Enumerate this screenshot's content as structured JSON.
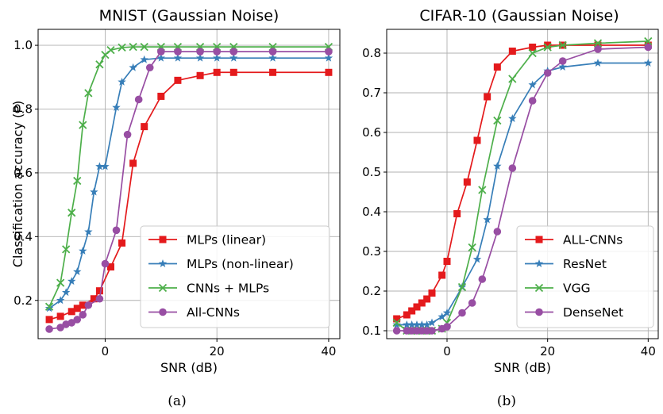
{
  "chart_data": [
    {
      "type": "line",
      "title": "MNIST (Gaussian Noise)",
      "xlabel": "SNR (dB)",
      "ylabel": "Classification accuracy (P)",
      "caption": "(a)",
      "xlim": [
        -12,
        42
      ],
      "ylim": [
        0.08,
        1.05
      ],
      "xticks": [
        0,
        20,
        40
      ],
      "yticks": [
        0.2,
        0.4,
        0.6,
        0.8,
        1.0
      ],
      "yticklabels": [
        "0.2",
        "0.4",
        "0.6",
        "0.8",
        "1.0"
      ],
      "grid": true,
      "legend_position": "lower-right",
      "series": [
        {
          "name": "MLPs (linear)",
          "color": "#e41a1c",
          "marker": "square",
          "x": [
            -10,
            -8,
            -6,
            -5,
            -4,
            -2,
            -1,
            1,
            3,
            5,
            7,
            10,
            13,
            17,
            20,
            23,
            30,
            40
          ],
          "y": [
            0.14,
            0.15,
            0.165,
            0.175,
            0.185,
            0.205,
            0.23,
            0.305,
            0.38,
            0.63,
            0.745,
            0.84,
            0.89,
            0.905,
            0.915,
            0.915,
            0.915,
            0.915
          ]
        },
        {
          "name": "MLPs (non-linear)",
          "color": "#377eb8",
          "marker": "star",
          "x": [
            -10,
            -8,
            -7,
            -6,
            -5,
            -4,
            -3,
            -2,
            -1,
            0,
            2,
            3,
            5,
            7,
            10,
            13,
            17,
            20,
            23,
            30,
            40
          ],
          "y": [
            0.175,
            0.2,
            0.225,
            0.26,
            0.29,
            0.355,
            0.415,
            0.54,
            0.62,
            0.62,
            0.805,
            0.885,
            0.93,
            0.955,
            0.96,
            0.96,
            0.96,
            0.96,
            0.96,
            0.96,
            0.96
          ]
        },
        {
          "name": "CNNs + MLPs",
          "color": "#4daf4a",
          "marker": "x",
          "x": [
            -10,
            -8,
            -7,
            -6,
            -5,
            -4,
            -3,
            -1,
            0,
            1,
            3,
            5,
            7,
            10,
            13,
            17,
            20,
            23,
            30,
            40
          ],
          "y": [
            0.18,
            0.255,
            0.36,
            0.475,
            0.575,
            0.75,
            0.85,
            0.94,
            0.97,
            0.985,
            0.993,
            0.995,
            0.995,
            0.995,
            0.995,
            0.995,
            0.995,
            0.995,
            0.995,
            0.995
          ]
        },
        {
          "name": "All-CNNs",
          "color": "#984ea3",
          "marker": "circle",
          "x": [
            -10,
            -8,
            -7,
            -6,
            -5,
            -4,
            -3,
            -1,
            0,
            2,
            4,
            6,
            8,
            10,
            13,
            17,
            20,
            23,
            30,
            40
          ],
          "y": [
            0.11,
            0.115,
            0.125,
            0.13,
            0.14,
            0.155,
            0.185,
            0.205,
            0.315,
            0.42,
            0.72,
            0.83,
            0.93,
            0.98,
            0.98,
            0.98,
            0.98,
            0.98,
            0.98,
            0.98
          ]
        }
      ]
    },
    {
      "type": "line",
      "title": "CIFAR-10 (Gaussian Noise)",
      "xlabel": "SNR (dB)",
      "ylabel": "",
      "caption": "(b)",
      "xlim": [
        -12,
        42
      ],
      "ylim": [
        0.08,
        0.86
      ],
      "xticks": [
        0,
        20,
        40
      ],
      "yticks": [
        0.1,
        0.2,
        0.3,
        0.4,
        0.5,
        0.6,
        0.7,
        0.8
      ],
      "yticklabels": [
        "0.1",
        "0.2",
        "0.3",
        "0.4",
        "0.5",
        "0.6",
        "0.7",
        "0.8"
      ],
      "grid": true,
      "legend_position": "lower-right",
      "series": [
        {
          "name": "ALL-CNNs",
          "color": "#e41a1c",
          "marker": "square",
          "x": [
            -10,
            -8,
            -7,
            -6,
            -5,
            -4,
            -3,
            -1,
            0,
            2,
            4,
            6,
            8,
            10,
            13,
            17,
            20,
            23,
            30,
            40
          ],
          "y": [
            0.13,
            0.14,
            0.15,
            0.16,
            0.17,
            0.18,
            0.195,
            0.24,
            0.275,
            0.395,
            0.475,
            0.58,
            0.69,
            0.765,
            0.805,
            0.815,
            0.82,
            0.82,
            0.82,
            0.82
          ]
        },
        {
          "name": "ResNet",
          "color": "#377eb8",
          "marker": "star",
          "x": [
            -10,
            -8,
            -7,
            -6,
            -5,
            -4,
            -3,
            -1,
            0,
            3,
            6,
            8,
            10,
            13,
            17,
            20,
            23,
            30,
            40
          ],
          "y": [
            0.115,
            0.115,
            0.115,
            0.115,
            0.115,
            0.115,
            0.12,
            0.135,
            0.145,
            0.21,
            0.28,
            0.38,
            0.515,
            0.635,
            0.72,
            0.755,
            0.765,
            0.775,
            0.775
          ]
        },
        {
          "name": "VGG",
          "color": "#4daf4a",
          "marker": "x",
          "x": [
            -10,
            -8,
            -7,
            -6,
            -5,
            -4,
            -3,
            -1,
            0,
            3,
            5,
            7,
            10,
            13,
            17,
            20,
            23,
            30,
            40
          ],
          "y": [
            0.12,
            0.1,
            0.1,
            0.1,
            0.1,
            0.1,
            0.1,
            0.105,
            0.12,
            0.21,
            0.31,
            0.455,
            0.63,
            0.735,
            0.8,
            0.815,
            0.82,
            0.825,
            0.83
          ]
        },
        {
          "name": "DenseNet",
          "color": "#984ea3",
          "marker": "circle",
          "x": [
            -10,
            -8,
            -7,
            -6,
            -5,
            -4,
            -3,
            -1,
            0,
            3,
            5,
            7,
            10,
            13,
            17,
            20,
            23,
            30,
            40
          ],
          "y": [
            0.1,
            0.1,
            0.1,
            0.1,
            0.1,
            0.1,
            0.1,
            0.105,
            0.11,
            0.145,
            0.17,
            0.23,
            0.35,
            0.51,
            0.68,
            0.75,
            0.78,
            0.81,
            0.815
          ]
        }
      ]
    }
  ]
}
